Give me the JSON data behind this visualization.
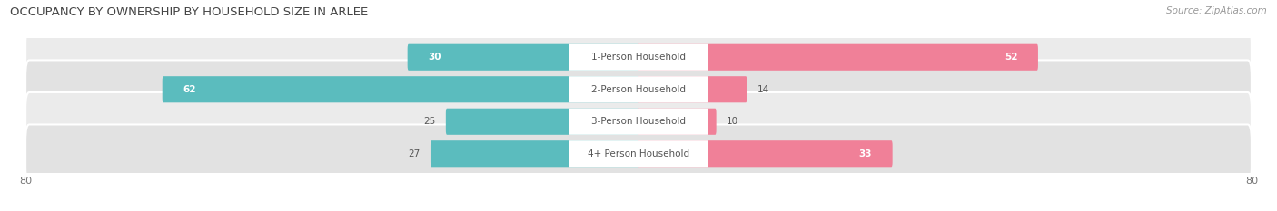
{
  "title": "OCCUPANCY BY OWNERSHIP BY HOUSEHOLD SIZE IN ARLEE",
  "source": "Source: ZipAtlas.com",
  "categories": [
    "1-Person Household",
    "2-Person Household",
    "3-Person Household",
    "4+ Person Household"
  ],
  "owner_values": [
    30,
    62,
    25,
    27
  ],
  "renter_values": [
    52,
    14,
    10,
    33
  ],
  "owner_color": "#5bbcbe",
  "renter_color": "#f08098",
  "row_colors": [
    "#ebebeb",
    "#e0e0e0"
  ],
  "axis_max": 80,
  "title_fontsize": 9.5,
  "label_fontsize": 7.5,
  "value_fontsize": 7.5,
  "tick_fontsize": 8,
  "source_fontsize": 7.5,
  "legend_fontsize": 8
}
